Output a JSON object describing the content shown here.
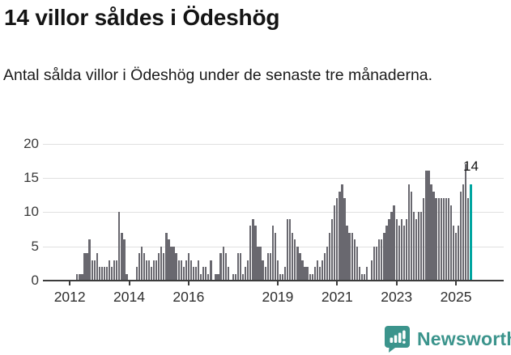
{
  "header": {
    "title": "14 villor såldes i Ödeshög",
    "subtitle": "Antal sålda villor i Ödeshög under de senaste tre månaderna."
  },
  "chart_data": {
    "type": "bar",
    "title": "14 villor såldes i Ödeshög",
    "subtitle": "Antal sålda villor i Ödeshög under de senaste tre månaderna.",
    "ylabel": "",
    "xlabel": "",
    "ylim": [
      0,
      20
    ],
    "yticks": [
      0,
      5,
      10,
      15,
      20
    ],
    "grid": true,
    "start_month": "2011-04",
    "end_month": "2025-07",
    "values": [
      0,
      0,
      0,
      0,
      0,
      0,
      0,
      0,
      0,
      0,
      0,
      0,
      1,
      1,
      1,
      4,
      4,
      6,
      3,
      3,
      4,
      2,
      2,
      2,
      2,
      3,
      2,
      3,
      3,
      10,
      7,
      6,
      1,
      0,
      0,
      0,
      2,
      4,
      5,
      4,
      3,
      3,
      2,
      3,
      3,
      4,
      5,
      4,
      7,
      6,
      5,
      5,
      4,
      3,
      3,
      2,
      3,
      4,
      3,
      2,
      2,
      3,
      1,
      2,
      2,
      1,
      3,
      0,
      1,
      1,
      4,
      5,
      4,
      2,
      0,
      1,
      1,
      4,
      4,
      1,
      2,
      3,
      8,
      9,
      8,
      5,
      5,
      3,
      2,
      4,
      4,
      8,
      7,
      3,
      1,
      1,
      2,
      9,
      9,
      7,
      6,
      5,
      4,
      3,
      2,
      2,
      1,
      1,
      2,
      3,
      2,
      3,
      4,
      5,
      7,
      9,
      11,
      12,
      13,
      14,
      12,
      8,
      7,
      7,
      6,
      5,
      2,
      1,
      1,
      2,
      0,
      3,
      5,
      5,
      6,
      6,
      7,
      8,
      9,
      10,
      11,
      9,
      8,
      9,
      8,
      9,
      14,
      13,
      10,
      9,
      10,
      10,
      12,
      16,
      16,
      14,
      13,
      12,
      12,
      12,
      12,
      12,
      12,
      11,
      8,
      7,
      8,
      13,
      14,
      17,
      12,
      14
    ],
    "highlight_index": 171,
    "highlight_label": "14",
    "xticks": [
      {
        "label": "2012",
        "month": "2012-01"
      },
      {
        "label": "2014",
        "month": "2014-01"
      },
      {
        "label": "2016",
        "month": "2016-01"
      },
      {
        "label": "2019",
        "month": "2019-01"
      },
      {
        "label": "2021",
        "month": "2021-01"
      },
      {
        "label": "2023",
        "month": "2023-01"
      },
      {
        "label": "2025",
        "month": "2025-01"
      }
    ]
  },
  "annotation": {
    "label": "14"
  },
  "footer": {
    "brand": "Newsworthy"
  },
  "colors": {
    "bar": "#69686F",
    "highlight": "#00A5A0",
    "grid": "#E0E0E0",
    "axis": "#3C3C3C",
    "title": "#141414",
    "brand": "#3B948C"
  }
}
